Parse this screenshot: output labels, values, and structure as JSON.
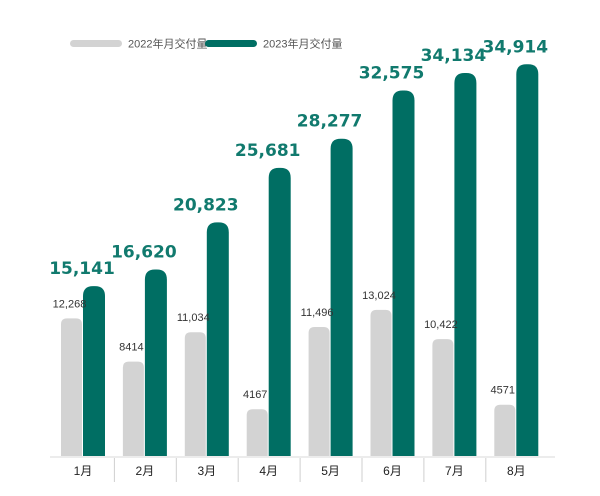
{
  "chart_data": {
    "type": "bar",
    "categories": [
      "1月",
      "2月",
      "3月",
      "4月",
      "5月",
      "6月",
      "7月",
      "8月"
    ],
    "series": [
      {
        "name": "2022年月交付量",
        "color": "#d3d3d3",
        "values": [
          12268,
          8414,
          11034,
          4167,
          11496,
          13024,
          10422,
          4571
        ],
        "labels": [
          "12,268",
          "8414",
          "11,034",
          "4167",
          "11,496",
          "13,024",
          "10,422",
          "4571"
        ]
      },
      {
        "name": "2023年月交付量",
        "color": "#006e63",
        "values": [
          15141,
          16620,
          20823,
          25681,
          28277,
          32575,
          34134,
          34914
        ],
        "labels": [
          "15,141",
          "16,620",
          "20,823",
          "25,681",
          "28,277",
          "32,575",
          "34,134",
          "34,914"
        ]
      }
    ],
    "ylim": [
      0,
      35000
    ],
    "grid": false,
    "legend_position": "top-left",
    "label_color_2023": "#117a6e"
  }
}
